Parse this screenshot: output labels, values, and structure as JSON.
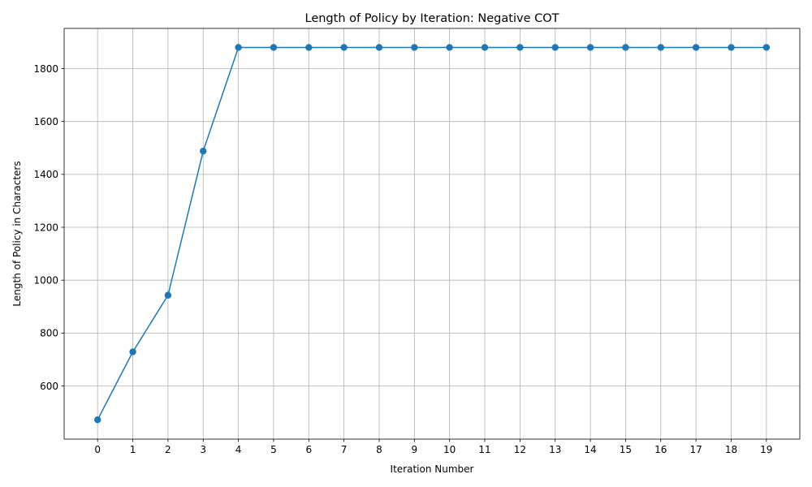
{
  "chart_data": {
    "type": "line",
    "title": "Length of Policy by Iteration: Negative COT",
    "xlabel": "Iteration Number",
    "ylabel": "Length of Policy in Characters",
    "x": [
      0,
      1,
      2,
      3,
      4,
      5,
      6,
      7,
      8,
      9,
      10,
      11,
      12,
      13,
      14,
      15,
      16,
      17,
      18,
      19
    ],
    "x_tick_labels": [
      "0",
      "1",
      "2",
      "3",
      "4",
      "5",
      "6",
      "7",
      "8",
      "9",
      "10",
      "11",
      "12",
      "13",
      "14",
      "15",
      "16",
      "17",
      "18",
      "19"
    ],
    "y_ticks": [
      600,
      800,
      1000,
      1200,
      1400,
      1600,
      1800
    ],
    "y_tick_labels": [
      "600",
      "800",
      "1000",
      "1200",
      "1400",
      "1600",
      "1800"
    ],
    "xlim": [
      -0.95,
      19.95
    ],
    "ylim": [
      399,
      1952
    ],
    "grid": true,
    "marker": "circle",
    "series": [
      {
        "color": "#1f77b4",
        "values": [
          472,
          729,
          943,
          1488,
          1880,
          1880,
          1880,
          1880,
          1880,
          1880,
          1880,
          1880,
          1880,
          1880,
          1880,
          1880,
          1880,
          1880,
          1880,
          1880
        ]
      }
    ]
  }
}
